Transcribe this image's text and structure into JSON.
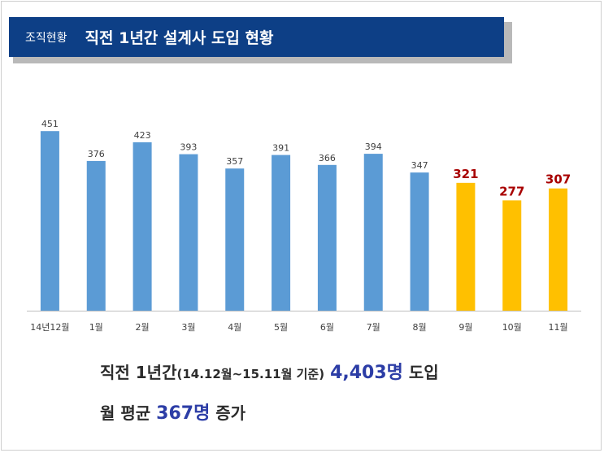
{
  "header": {
    "category": "조직현황",
    "title": "직전 1년간 설계사 도입 현황"
  },
  "chart_data": {
    "type": "bar",
    "categories": [
      "14년12월",
      "1월",
      "2월",
      "3월",
      "4월",
      "5월",
      "6월",
      "7월",
      "8월",
      "9월",
      "10월",
      "11월"
    ],
    "values": [
      451,
      376,
      423,
      393,
      357,
      391,
      366,
      394,
      347,
      321,
      277,
      307
    ],
    "highlight_from_index": 9,
    "ylim": [
      0,
      480
    ],
    "grid": false,
    "colors": {
      "normal_bar": "#5b9bd5",
      "highlight_bar": "#ffc000",
      "normal_label": "#404040",
      "highlight_label": "#a80000",
      "axis": "#bfbfbf"
    }
  },
  "summary": {
    "line1_prefix": "직전 1년간",
    "line1_paren": "(14.12월~15.11월 기준)",
    "line1_value": "4,403명",
    "line1_suffix": "도입",
    "line2_prefix": "월 평균",
    "line2_value": "367명",
    "line2_suffix": "증가"
  }
}
